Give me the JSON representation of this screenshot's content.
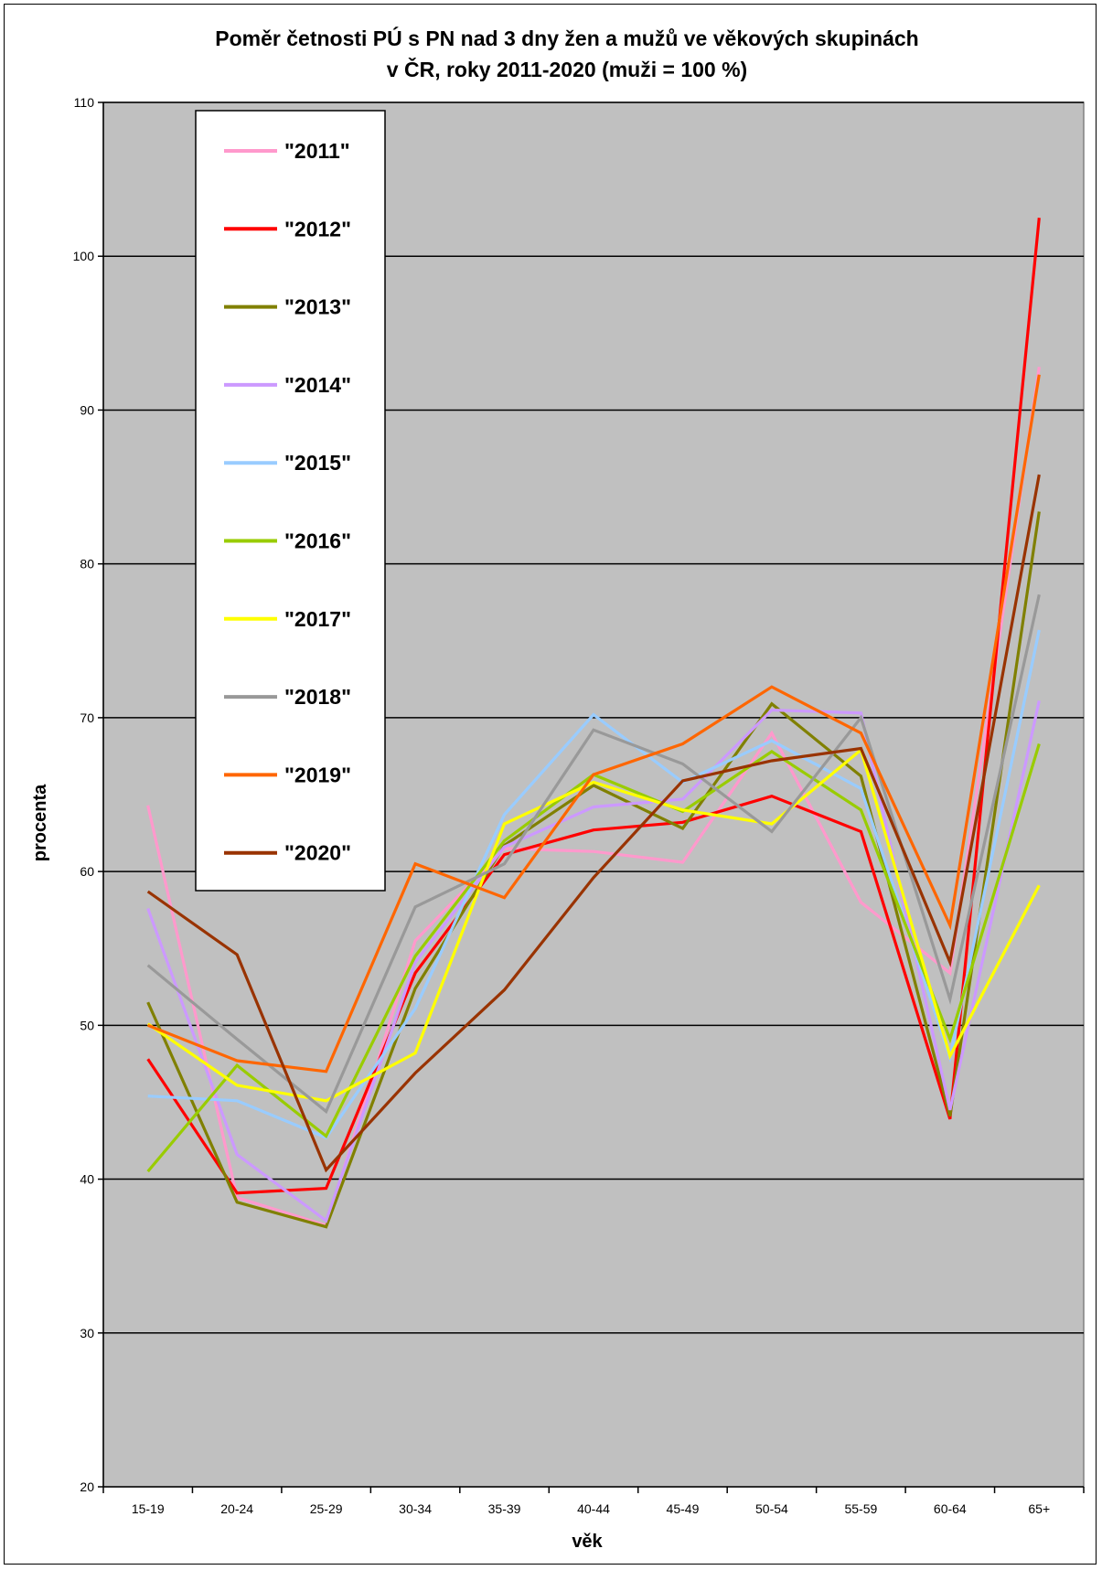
{
  "chart_data": {
    "type": "line",
    "title": [
      "Poměr četnosti PÚ s PN nad 3 dny žen a mužů ve věkových skupinách",
      "v ČR, roky 2011-2020 (muži = 100 %)"
    ],
    "xlabel": "věk",
    "ylabel": "procenta",
    "ylim": [
      20,
      110
    ],
    "yticks": [
      20,
      30,
      40,
      50,
      60,
      70,
      80,
      90,
      100,
      110
    ],
    "grid": true,
    "plot_background": "#c0c0c0",
    "legend_position": "top-left",
    "categories": [
      "15-19",
      "20-24",
      "25-29",
      "30-34",
      "35-39",
      "40-44",
      "45-49",
      "50-54",
      "55-59",
      "60-64",
      "65+"
    ],
    "series": [
      {
        "name": "\"2011\"",
        "color": "#ff99cc",
        "values": [
          64.3,
          38.8,
          37.0,
          55.5,
          61.5,
          61.3,
          60.6,
          69.0,
          58.0,
          53.4,
          92.8
        ]
      },
      {
        "name": "\"2012\"",
        "color": "#ff0000",
        "values": [
          47.8,
          39.1,
          39.4,
          53.4,
          61.1,
          62.7,
          63.2,
          64.9,
          62.6,
          43.9,
          102.5
        ]
      },
      {
        "name": "\"2013\"",
        "color": "#808000",
        "values": [
          51.5,
          38.5,
          36.9,
          52.4,
          61.7,
          65.6,
          62.8,
          70.9,
          66.2,
          44.1,
          83.4
        ]
      },
      {
        "name": "\"2014\"",
        "color": "#cc99ff",
        "values": [
          57.6,
          41.6,
          37.3,
          54.1,
          61.6,
          64.2,
          64.7,
          70.5,
          70.3,
          44.5,
          71.1
        ]
      },
      {
        "name": "\"2015\"",
        "color": "#99ccff",
        "values": [
          45.4,
          45.1,
          42.7,
          51.1,
          63.7,
          70.2,
          65.8,
          68.5,
          65.4,
          47.9,
          75.7
        ]
      },
      {
        "name": "\"2016\"",
        "color": "#99cc00",
        "values": [
          40.5,
          47.4,
          42.8,
          54.5,
          62.0,
          66.3,
          63.9,
          67.8,
          64.0,
          49.1,
          68.3
        ]
      },
      {
        "name": "\"2017\"",
        "color": "#ffff00",
        "values": [
          50.1,
          46.1,
          45.1,
          48.2,
          63.1,
          65.8,
          64.0,
          63.1,
          67.9,
          48.0,
          59.1
        ]
      },
      {
        "name": "\"2018\"",
        "color": "#999999",
        "values": [
          53.9,
          49.1,
          44.4,
          57.7,
          60.5,
          69.2,
          67.0,
          62.6,
          70.0,
          51.7,
          78.0
        ]
      },
      {
        "name": "\"2019\"",
        "color": "#ff6600",
        "values": [
          50.0,
          47.7,
          47.0,
          60.5,
          58.3,
          66.3,
          68.3,
          72.0,
          69.0,
          56.5,
          92.3
        ]
      },
      {
        "name": "\"2020\"",
        "color": "#993300",
        "values": [
          58.7,
          54.6,
          40.6,
          46.9,
          52.3,
          59.6,
          65.9,
          67.2,
          68.0,
          54.1,
          85.8
        ]
      }
    ]
  }
}
